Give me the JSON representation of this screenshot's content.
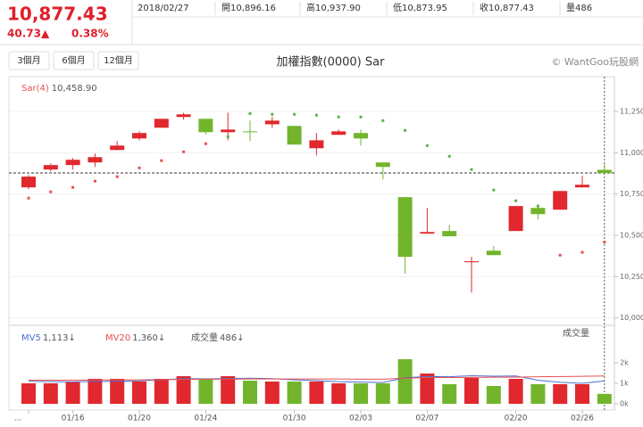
{
  "header": {
    "price": "10,877.43",
    "change": "40.73▲",
    "change_pct": "0.38%",
    "date": "2018/02/27",
    "items": [
      {
        "label": "開",
        "value": "10,896.16"
      },
      {
        "label": "高",
        "value": "10,937.90"
      },
      {
        "label": "低",
        "value": "10,873.95"
      },
      {
        "label": "收",
        "value": "10,877.43"
      },
      {
        "label": "量",
        "value": "486"
      }
    ],
    "buttons": [
      "3個月",
      "6個月",
      "12個月"
    ]
  },
  "chart_data": [
    {
      "type": "candlestick",
      "title": "加權指數(0000) Sar",
      "watermark": "© WantGoo玩股網",
      "categories": [
        "...",
        null,
        "01/16",
        null,
        null,
        "01/20",
        null,
        null,
        "01/24",
        null,
        null,
        null,
        "01/30",
        null,
        null,
        "02/03",
        null,
        null,
        "02/07",
        null,
        null,
        null,
        "02/20",
        null,
        null,
        "02/26",
        null
      ],
      "open": [
        10790,
        10898,
        10925,
        10941,
        11016,
        11086,
        11151,
        11216,
        11205,
        11124,
        11129,
        11172,
        11162,
        11027,
        11108,
        11119,
        10941,
        10731,
        10510,
        10526,
        10337,
        10407,
        10526,
        10666,
        10655,
        10790,
        10896.16
      ],
      "high": [
        10865,
        10935,
        10968,
        10995,
        11070,
        11129,
        11205,
        11242,
        11205,
        11242,
        11194,
        11216,
        11162,
        11119,
        11140,
        11140,
        10941,
        10731,
        10666,
        10564,
        10370,
        10434,
        10677,
        10682,
        10768,
        10860,
        10937.9
      ],
      "low": [
        10779,
        10887,
        10898,
        10914,
        11016,
        11075,
        11151,
        11200,
        11108,
        11075,
        11070,
        11151,
        11049,
        10984,
        11108,
        11043,
        10838,
        10267,
        10510,
        10494,
        10154,
        10380,
        10526,
        10596,
        10655,
        10790,
        10873.95
      ],
      "close": [
        10855,
        10925,
        10957,
        10973,
        11043,
        11119,
        11205,
        11232,
        11124,
        11140,
        11124,
        11194,
        11049,
        11075,
        11129,
        11086,
        10914,
        10370,
        10520,
        10494,
        10343,
        10380,
        10677,
        10628,
        10768,
        10806,
        10877.43
      ],
      "up_color": "#e0282e",
      "down_color": "#72b52c",
      "sar": {
        "name": "Sar(4)",
        "last_label": "10,458.90",
        "up_color": "#e8504f",
        "down_color": "#56b34a",
        "values": [
          10725,
          10763,
          10790,
          10828,
          10855,
          10908,
          10952,
          11005,
          11054,
          11097,
          11237,
          11232,
          11232,
          11227,
          11216,
          11216,
          11194,
          11135,
          11043,
          10978,
          10898,
          10774,
          10709,
          10677,
          10380,
          10397,
          10458.9
        ]
      },
      "ylim": [
        9955,
        11460
      ],
      "yticks": [
        {
          "value": 10000,
          "label": "10,000"
        },
        {
          "value": 10250,
          "label": "10,250"
        },
        {
          "value": 10500,
          "label": "10,500"
        },
        {
          "value": 10750,
          "label": "10,750"
        },
        {
          "value": 11000,
          "label": "11,000"
        },
        {
          "value": 11250,
          "label": "11,250"
        }
      ],
      "grid": true
    },
    {
      "type": "bar",
      "title": "成交量",
      "name": "成交量",
      "last_label": "486↓",
      "values": [
        1000,
        1000,
        1087,
        1217,
        1217,
        1087,
        1217,
        1348,
        1217,
        1348,
        1130,
        1087,
        1087,
        1087,
        1000,
        1000,
        1000,
        2174,
        1478,
        957,
        1261,
        870,
        1217,
        957,
        957,
        957,
        486
      ],
      "series": [
        {
          "name": "MV5",
          "color": "#4b6fd0",
          "last_label": "1,113↓",
          "values": [
            1100,
            1080,
            1070,
            1090,
            1100,
            1120,
            1170,
            1230,
            1220,
            1230,
            1250,
            1230,
            1170,
            1130,
            1080,
            1060,
            1040,
            1270,
            1330,
            1320,
            1370,
            1350,
            1360,
            1150,
            1050,
            1000,
            1113
          ]
        },
        {
          "name": "MV20",
          "color": "#e8504f",
          "last_label": "1,360↓",
          "values": [
            1150,
            1150,
            1150,
            1160,
            1170,
            1170,
            1180,
            1190,
            1200,
            1200,
            1210,
            1210,
            1210,
            1210,
            1210,
            1200,
            1200,
            1250,
            1280,
            1280,
            1290,
            1300,
            1300,
            1320,
            1330,
            1340,
            1360
          ]
        }
      ],
      "ylim": [
        0,
        3826
      ],
      "yticks": [
        {
          "value": 0,
          "label": "0k"
        },
        {
          "value": 1000,
          "label": "1k"
        },
        {
          "value": 2000,
          "label": "2k"
        }
      ]
    }
  ]
}
